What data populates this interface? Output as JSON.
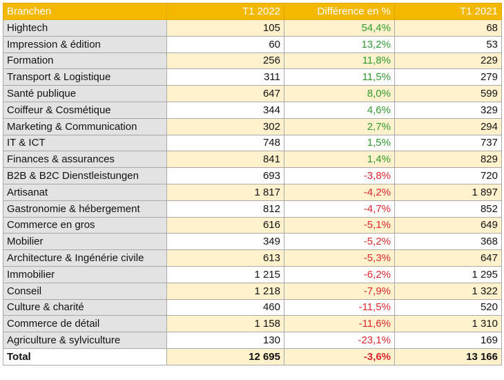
{
  "headers": {
    "branches": "Branchen",
    "t1_2022": "T1 2022",
    "difference": "Différence en %",
    "t1_2021": "T1 2021"
  },
  "rows": [
    {
      "name": "Hightech",
      "t1_2022": "105",
      "diff": "54,4%",
      "t1_2021": "68",
      "sign": "pos"
    },
    {
      "name": "Impression & édition",
      "t1_2022": "60",
      "diff": "13,2%",
      "t1_2021": "53",
      "sign": "pos"
    },
    {
      "name": "Formation",
      "t1_2022": "256",
      "diff": "11,8%",
      "t1_2021": "229",
      "sign": "pos"
    },
    {
      "name": "Transport & Logistique",
      "t1_2022": "311",
      "diff": "11,5%",
      "t1_2021": "279",
      "sign": "pos"
    },
    {
      "name": "Santé publique",
      "t1_2022": "647",
      "diff": "8,0%",
      "t1_2021": "599",
      "sign": "pos"
    },
    {
      "name": "Coiffeur & Cosmétique",
      "t1_2022": "344",
      "diff": "4,6%",
      "t1_2021": "329",
      "sign": "pos"
    },
    {
      "name": "Marketing & Communication",
      "t1_2022": "302",
      "diff": "2,7%",
      "t1_2021": "294",
      "sign": "pos"
    },
    {
      "name": "IT & ICT",
      "t1_2022": "748",
      "diff": "1,5%",
      "t1_2021": "737",
      "sign": "pos"
    },
    {
      "name": "Finances & assurances",
      "t1_2022": "841",
      "diff": "1,4%",
      "t1_2021": "829",
      "sign": "pos"
    },
    {
      "name": "B2B & B2C Dienstleistungen",
      "t1_2022": "693",
      "diff": "-3,8%",
      "t1_2021": "720",
      "sign": "neg"
    },
    {
      "name": "Artisanat",
      "t1_2022": "1 817",
      "diff": "-4,2%",
      "t1_2021": "1 897",
      "sign": "neg"
    },
    {
      "name": "Gastronomie & hébergement",
      "t1_2022": "812",
      "diff": "-4,7%",
      "t1_2021": "852",
      "sign": "neg"
    },
    {
      "name": "Commerce en gros",
      "t1_2022": "616",
      "diff": "-5,1%",
      "t1_2021": "649",
      "sign": "neg"
    },
    {
      "name": "Mobilier",
      "t1_2022": "349",
      "diff": "-5,2%",
      "t1_2021": "368",
      "sign": "neg"
    },
    {
      "name": "Architecture & Ingénérie civile",
      "t1_2022": "613",
      "diff": "-5,3%",
      "t1_2021": "647",
      "sign": "neg"
    },
    {
      "name": "Immobilier",
      "t1_2022": "1 215",
      "diff": "-6,2%",
      "t1_2021": "1 295",
      "sign": "neg"
    },
    {
      "name": "Conseil",
      "t1_2022": "1 218",
      "diff": "-7,9%",
      "t1_2021": "1 322",
      "sign": "neg"
    },
    {
      "name": "Culture & charité",
      "t1_2022": "460",
      "diff": "-11,5%",
      "t1_2021": "520",
      "sign": "neg"
    },
    {
      "name": "Commerce de détail",
      "t1_2022": "1 158",
      "diff": "-11,6%",
      "t1_2021": "1 310",
      "sign": "neg"
    },
    {
      "name": "Agriculture & sylviculture",
      "t1_2022": "130",
      "diff": "-23,1%",
      "t1_2021": "169",
      "sign": "neg"
    }
  ],
  "total": {
    "name": "Total",
    "t1_2022": "12 695",
    "diff": "-3,6%",
    "t1_2021": "13 166"
  },
  "colors": {
    "header": "#f5b800",
    "positive": "#2e9b2e",
    "negative": "#e0262e",
    "row_highlight": "#fff2cc",
    "name_cell": "#e3e3e3"
  }
}
